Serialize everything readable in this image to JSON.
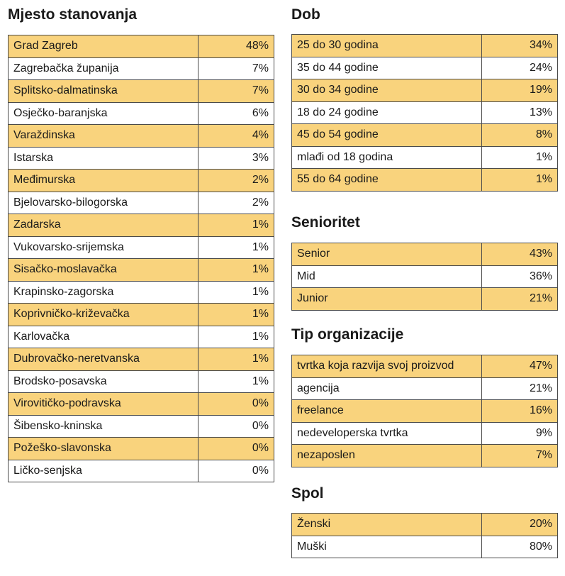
{
  "mjesto": {
    "title": "Mjesto stanovanja",
    "rows": [
      {
        "label": "Grad Zagreb",
        "value": "48%"
      },
      {
        "label": "Zagrebačka županija",
        "value": "7%"
      },
      {
        "label": "Splitsko-dalmatinska",
        "value": "7%"
      },
      {
        "label": "Osječko-baranjska",
        "value": "6%"
      },
      {
        "label": "Varaždinska",
        "value": "4%"
      },
      {
        "label": "Istarska",
        "value": "3%"
      },
      {
        "label": "Međimurska",
        "value": "2%"
      },
      {
        "label": "Bjelovarsko-bilogorska",
        "value": "2%"
      },
      {
        "label": "Zadarska",
        "value": "1%"
      },
      {
        "label": "Vukovarsko-srijemska",
        "value": "1%"
      },
      {
        "label": "Sisačko-moslavačka",
        "value": "1%"
      },
      {
        "label": "Krapinsko-zagorska",
        "value": "1%"
      },
      {
        "label": "Koprivničko-križevačka",
        "value": "1%"
      },
      {
        "label": "Karlovačka",
        "value": "1%"
      },
      {
        "label": "Dubrovačko-neretvanska",
        "value": "1%"
      },
      {
        "label": "Brodsko-posavska",
        "value": "1%"
      },
      {
        "label": "Virovitičko-podravska",
        "value": "0%"
      },
      {
        "label": "Šibensko-kninska",
        "value": "0%"
      },
      {
        "label": "Požeško-slavonska",
        "value": "0%"
      },
      {
        "label": "Ličko-senjska",
        "value": "0%"
      }
    ]
  },
  "dob": {
    "title": "Dob",
    "rows": [
      {
        "label": "25 do 30 godina",
        "value": "34%"
      },
      {
        "label": "35 do 44 godine",
        "value": "24%"
      },
      {
        "label": "30 do 34 godine",
        "value": "19%"
      },
      {
        "label": "18 do 24 godine",
        "value": "13%"
      },
      {
        "label": "45 do 54 godine",
        "value": "8%"
      },
      {
        "label": "mlađi od 18 godina",
        "value": "1%"
      },
      {
        "label": "55 do 64 godine",
        "value": "1%"
      }
    ]
  },
  "senioritet": {
    "title": "Senioritet",
    "rows": [
      {
        "label": "Senior",
        "value": "43%"
      },
      {
        "label": "Mid",
        "value": "36%"
      },
      {
        "label": "Junior",
        "value": "21%"
      }
    ]
  },
  "tip": {
    "title": "Tip organizacije",
    "rows": [
      {
        "label": "tvrtka koja razvija svoj proizvod",
        "value": "47%"
      },
      {
        "label": "agencija",
        "value": "21%"
      },
      {
        "label": "freelance",
        "value": "16%"
      },
      {
        "label": "nedeveloperska tvrtka",
        "value": "9%"
      },
      {
        "label": "nezaposlen",
        "value": "7%"
      }
    ]
  },
  "spol": {
    "title": "Spol",
    "rows": [
      {
        "label": "Ženski",
        "value": "20%"
      },
      {
        "label": "Muški",
        "value": "80%"
      }
    ]
  },
  "colors": {
    "highlight_row": "#f9d37d",
    "plain_row": "#ffffff",
    "border": "#4a4a4a"
  }
}
